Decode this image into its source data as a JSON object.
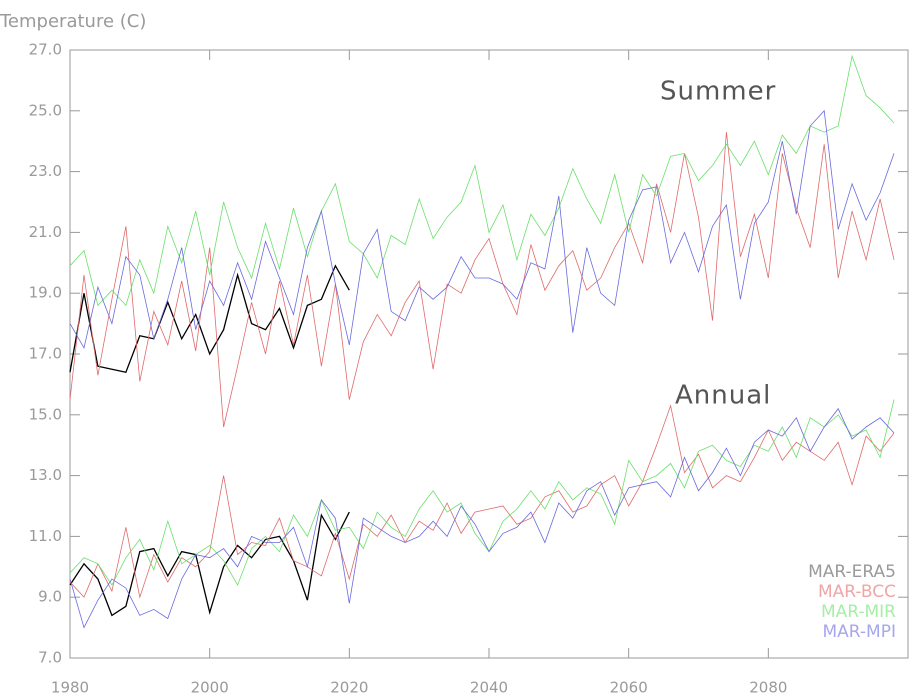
{
  "chart_data": {
    "type": "line",
    "y_label": "Temperature (C)",
    "x": [
      1980,
      1982,
      1984,
      1986,
      1988,
      1990,
      1992,
      1994,
      1996,
      1998,
      2000,
      2002,
      2004,
      2006,
      2008,
      2010,
      2012,
      2014,
      2016,
      2018,
      2020,
      2022,
      2024,
      2026,
      2028,
      2030,
      2032,
      2034,
      2036,
      2038,
      2040,
      2042,
      2044,
      2046,
      2048,
      2050,
      2052,
      2054,
      2056,
      2058,
      2060,
      2062,
      2064,
      2066,
      2068,
      2070,
      2072,
      2074,
      2076,
      2078,
      2080,
      2082,
      2084,
      2086,
      2088,
      2090,
      2092,
      2094,
      2096,
      2098
    ],
    "xlim": [
      1980,
      2100
    ],
    "xticks": [
      1980,
      2000,
      2020,
      2040,
      2060,
      2080
    ],
    "ylim": [
      7,
      27
    ],
    "yticks": [
      {
        "value": 7,
        "label": "7.0"
      },
      {
        "value": 9,
        "label": "9.0"
      },
      {
        "value": 11,
        "label": "11.0"
      },
      {
        "value": 13,
        "label": "13.0"
      },
      {
        "value": 15,
        "label": "15.0"
      },
      {
        "value": 17,
        "label": "17.0"
      },
      {
        "value": 19,
        "label": "19.0"
      },
      {
        "value": 21,
        "label": "21.0"
      },
      {
        "value": 23,
        "label": "23.0"
      },
      {
        "value": 25,
        "label": "25.0"
      },
      {
        "value": 27,
        "label": "27.0"
      }
    ],
    "legend": "lower right",
    "groups": [
      {
        "label": "Summer",
        "series": [
          {
            "name": "MAR-ERA5",
            "color": "#000000",
            "legend_color": "#9a9a9a",
            "values": [
              16.4,
              19.0,
              16.6,
              16.5,
              16.4,
              17.6,
              17.5,
              18.7,
              17.5,
              18.3,
              17.0,
              17.8,
              19.6,
              18.0,
              17.8,
              18.5,
              17.2,
              18.6,
              18.8,
              19.9,
              19.1,
              null,
              null,
              null,
              null,
              null,
              null,
              null,
              null,
              null,
              null,
              null,
              null,
              null,
              null,
              null,
              null,
              null,
              null,
              null,
              null,
              null,
              null,
              null,
              null,
              null,
              null,
              null,
              null,
              null,
              null,
              null,
              null,
              null,
              null,
              null,
              null,
              null,
              null,
              null
            ]
          },
          {
            "name": "MAR-BCC",
            "color": "#e06a6a",
            "legend_color": "#eea6a6",
            "values": [
              15.5,
              19.6,
              16.3,
              18.8,
              21.2,
              16.1,
              18.4,
              17.3,
              19.4,
              17.1,
              20.5,
              14.6,
              16.6,
              18.7,
              17.0,
              19.4,
              17.3,
              19.6,
              16.6,
              19.3,
              15.5,
              17.4,
              18.3,
              17.6,
              18.7,
              19.4,
              16.5,
              19.3,
              19.0,
              20.1,
              20.8,
              19.3,
              18.3,
              20.6,
              19.1,
              19.9,
              20.4,
              19.1,
              19.5,
              20.5,
              21.3,
              20.0,
              22.6,
              21.0,
              23.6,
              21.5,
              18.1,
              24.3,
              20.2,
              21.6,
              19.5,
              23.6,
              21.8,
              20.5,
              23.9,
              19.5,
              21.7,
              20.1,
              22.1,
              20.1
            ]
          },
          {
            "name": "MAR-MIR",
            "color": "#6ae06a",
            "legend_color": "#a6eea6",
            "values": [
              19.9,
              20.4,
              18.6,
              19.1,
              18.6,
              20.1,
              19.0,
              21.2,
              20.0,
              21.7,
              19.6,
              22.0,
              20.5,
              19.5,
              21.3,
              19.8,
              21.8,
              20.2,
              21.7,
              22.6,
              20.7,
              20.3,
              19.5,
              20.9,
              20.6,
              22.1,
              20.8,
              21.5,
              22.0,
              23.2,
              21.0,
              21.9,
              20.1,
              21.6,
              20.9,
              21.8,
              23.1,
              22.1,
              21.3,
              22.9,
              21.0,
              22.9,
              22.2,
              23.5,
              23.6,
              22.7,
              23.2,
              23.9,
              23.2,
              24.0,
              22.9,
              24.2,
              23.6,
              24.5,
              24.3,
              24.5,
              26.8,
              25.5,
              25.1,
              24.6
            ]
          },
          {
            "name": "MAR-MPI",
            "color": "#6a6ae0",
            "legend_color": "#a6a6ee",
            "values": [
              18.0,
              17.2,
              19.2,
              18.0,
              20.2,
              19.6,
              17.5,
              18.8,
              20.5,
              17.8,
              19.4,
              18.6,
              20.0,
              18.8,
              20.7,
              19.5,
              18.3,
              20.5,
              21.7,
              19.3,
              17.3,
              20.3,
              21.1,
              18.4,
              18.1,
              19.2,
              18.8,
              19.2,
              20.2,
              19.5,
              19.5,
              19.3,
              18.8,
              20.0,
              19.8,
              22.2,
              17.7,
              20.5,
              19.0,
              18.6,
              21.4,
              22.4,
              22.5,
              20.0,
              21.0,
              19.7,
              21.2,
              21.9,
              18.8,
              21.3,
              22.0,
              24.0,
              21.6,
              24.5,
              25.0,
              21.1,
              22.6,
              21.4,
              22.3,
              23.6
            ]
          }
        ]
      },
      {
        "label": "Annual",
        "series": [
          {
            "color": "#000000",
            "values": [
              9.4,
              10.1,
              9.6,
              8.4,
              8.7,
              10.5,
              10.6,
              9.7,
              10.5,
              10.4,
              8.5,
              10.0,
              10.7,
              10.3,
              10.9,
              11.0,
              10.2,
              8.9,
              11.7,
              10.9,
              11.8,
              null,
              null,
              null,
              null,
              null,
              null,
              null,
              null,
              null,
              null,
              null,
              null,
              null,
              null,
              null,
              null,
              null,
              null,
              null,
              null,
              null,
              null,
              null,
              null,
              null,
              null,
              null,
              null,
              null,
              null,
              null,
              null,
              null,
              null,
              null,
              null,
              null,
              null,
              null
            ]
          },
          {
            "color": "#e06a6a",
            "values": [
              9.5,
              9.0,
              10.1,
              9.2,
              11.3,
              9.0,
              10.4,
              9.5,
              10.3,
              10.0,
              10.5,
              13.0,
              10.4,
              10.8,
              10.7,
              11.6,
              10.2,
              10.0,
              9.7,
              11.1,
              9.6,
              11.4,
              11.0,
              11.7,
              10.8,
              11.5,
              11.2,
              12.1,
              11.1,
              11.8,
              11.9,
              12.0,
              11.4,
              11.6,
              12.3,
              12.5,
              11.8,
              12.0,
              12.7,
              13.0,
              12.0,
              12.8,
              14.0,
              15.3,
              13.1,
              13.7,
              12.6,
              13.0,
              12.8,
              13.6,
              14.5,
              13.5,
              14.1,
              13.8,
              13.5,
              14.1,
              12.7,
              14.3,
              13.8,
              14.4
            ]
          },
          {
            "color": "#6ae06a",
            "values": [
              9.8,
              10.3,
              10.1,
              9.4,
              10.3,
              10.9,
              9.9,
              11.5,
              10.1,
              10.4,
              10.7,
              10.2,
              9.4,
              10.6,
              11.0,
              10.5,
              11.7,
              11.0,
              12.2,
              11.2,
              11.3,
              10.6,
              11.8,
              11.3,
              11.0,
              11.9,
              12.5,
              11.8,
              12.1,
              11.1,
              10.5,
              11.5,
              11.9,
              12.5,
              11.9,
              12.8,
              12.2,
              12.6,
              12.4,
              11.4,
              13.5,
              12.8,
              13.0,
              13.4,
              12.6,
              13.8,
              14.0,
              13.5,
              13.3,
              14.0,
              13.8,
              14.6,
              13.6,
              14.9,
              14.6,
              15.0,
              14.3,
              14.5,
              13.6,
              15.5
            ]
          },
          {
            "color": "#6a6ae0",
            "values": [
              9.6,
              8.0,
              8.9,
              9.6,
              9.3,
              8.4,
              8.6,
              8.3,
              9.6,
              10.4,
              10.3,
              10.6,
              10.0,
              11.0,
              10.8,
              10.8,
              11.3,
              10.0,
              12.2,
              11.6,
              8.8,
              11.6,
              11.3,
              11.0,
              10.8,
              11.0,
              11.5,
              11.0,
              12.0,
              11.4,
              10.5,
              11.1,
              11.3,
              11.8,
              10.8,
              12.1,
              11.6,
              12.5,
              12.8,
              11.7,
              12.6,
              12.7,
              12.8,
              12.3,
              13.6,
              12.5,
              13.1,
              13.9,
              13.0,
              14.1,
              14.5,
              14.3,
              14.9,
              13.8,
              14.6,
              15.2,
              14.2,
              14.6,
              14.9,
              14.4
            ]
          }
        ]
      }
    ]
  }
}
